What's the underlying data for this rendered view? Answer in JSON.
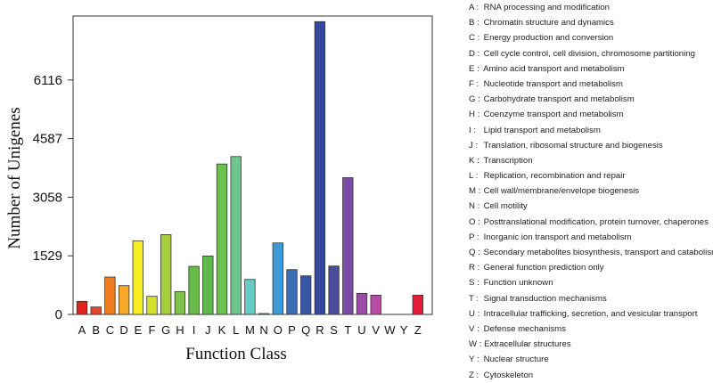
{
  "chart_data": {
    "type": "bar",
    "title": "",
    "xlabel": "Function Class",
    "ylabel": "Number of Unigenes",
    "ylim": [
      0,
      7785
    ],
    "yticks": [
      0,
      1529,
      3058,
      4587,
      6116
    ],
    "grid": false,
    "legend_placement": "right",
    "categories": [
      "A",
      "B",
      "C",
      "D",
      "E",
      "F",
      "G",
      "H",
      "I",
      "J",
      "K",
      "L",
      "M",
      "N",
      "O",
      "P",
      "Q",
      "R",
      "S",
      "T",
      "U",
      "V",
      "W",
      "Y",
      "Z"
    ],
    "values": [
      341,
      194,
      975,
      751,
      1920,
      472,
      2082,
      596,
      1254,
      1525,
      3924,
      4118,
      913,
      23,
      1865,
      1169,
      1006,
      7640,
      1262,
      3568,
      550,
      503,
      0,
      0,
      503
    ],
    "colors": [
      "#e3211f",
      "#e8432b",
      "#f07d22",
      "#f7a928",
      "#f8ec22",
      "#d1e12c",
      "#a6cf3b",
      "#7cc24b",
      "#67bc48",
      "#5fb94b",
      "#6cc04f",
      "#70c58e",
      "#64cac4",
      "#4aa6d8",
      "#3f9bd6",
      "#3b6cb6",
      "#3856a8",
      "#34489f",
      "#4b4b9f",
      "#7a4ba4",
      "#9c4ba7",
      "#b64ca5",
      "#c0488f",
      "#c8457a",
      "#e31c3a"
    ],
    "legend": [
      {
        "key": "A",
        "label": "RNA processing and modification"
      },
      {
        "key": "B",
        "label": "Chromatin structure and dynamics"
      },
      {
        "key": "C",
        "label": "Energy production and conversion"
      },
      {
        "key": "D",
        "label": "Cell cycle control, cell division, chromosome partitioning"
      },
      {
        "key": "E",
        "label": "Amino acid transport and metabolism"
      },
      {
        "key": "F",
        "label": "Nucleotide transport and metabolism"
      },
      {
        "key": "G",
        "label": "Carbohydrate transport and metabolism"
      },
      {
        "key": "H",
        "label": "Coenzyme transport and metabolism"
      },
      {
        "key": "I",
        "label": "Lipid transport and metabolism"
      },
      {
        "key": "J",
        "label": "Translation, ribosomal structure and biogenesis"
      },
      {
        "key": "K",
        "label": "Transcription"
      },
      {
        "key": "L",
        "label": "Replication, recombination and repair"
      },
      {
        "key": "M",
        "label": "Cell wall/membrane/envelope biogenesis"
      },
      {
        "key": "N",
        "label": "Cell motility"
      },
      {
        "key": "O",
        "label": "Posttranslational modification, protein turnover, chaperones"
      },
      {
        "key": "P",
        "label": "Inorganic ion transport and metabolism"
      },
      {
        "key": "Q",
        "label": "Secondary metabolites biosynthesis, transport and catabolism"
      },
      {
        "key": "R",
        "label": "General function prediction only"
      },
      {
        "key": "S",
        "label": "Function unknown"
      },
      {
        "key": "T",
        "label": "Signal transduction mechanisms"
      },
      {
        "key": "U",
        "label": "Intracellular trafficking, secretion, and vesicular transport"
      },
      {
        "key": "V",
        "label": "Defense mechanisms"
      },
      {
        "key": "W",
        "label": "Extracellular structures"
      },
      {
        "key": "Y",
        "label": "Nuclear structure"
      },
      {
        "key": "Z",
        "label": "Cytoskeleton"
      }
    ]
  }
}
